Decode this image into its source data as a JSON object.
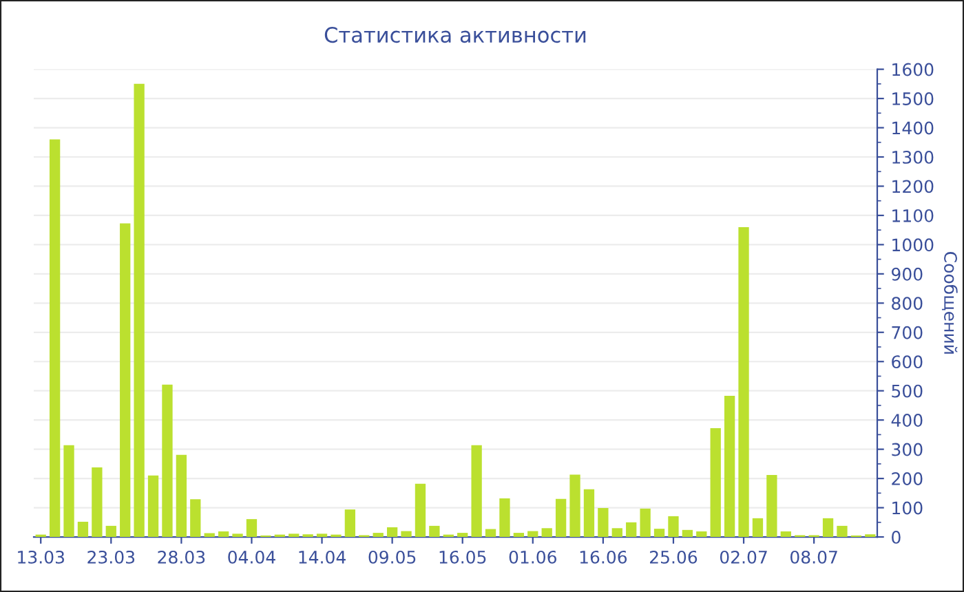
{
  "chart_data": {
    "type": "bar",
    "title": "Статистика активности",
    "ylabel": "Сообщений",
    "categories": [
      "13.03",
      null,
      null,
      null,
      null,
      "23.03",
      null,
      null,
      null,
      null,
      "28.03",
      null,
      null,
      null,
      null,
      "04.04",
      null,
      null,
      null,
      null,
      "14.04",
      null,
      null,
      null,
      null,
      "09.05",
      null,
      null,
      null,
      null,
      "16.05",
      null,
      null,
      null,
      null,
      "01.06",
      null,
      null,
      null,
      null,
      "16.06",
      null,
      null,
      null,
      null,
      "25.06",
      null,
      null,
      null,
      null,
      "02.07",
      null,
      null,
      null,
      null,
      "08.07",
      null,
      null,
      null,
      null
    ],
    "values": [
      8,
      1360,
      314,
      52,
      238,
      38,
      1073,
      1550,
      210,
      521,
      281,
      129,
      13,
      19,
      11,
      61,
      5,
      8,
      11,
      9,
      11,
      8,
      94,
      6,
      14,
      33,
      20,
      182,
      38,
      8,
      14,
      314,
      27,
      132,
      14,
      20,
      30,
      130,
      213,
      163,
      99,
      30,
      50,
      97,
      28,
      71,
      24,
      19,
      372,
      483,
      1060,
      64,
      212,
      19,
      6,
      6,
      64,
      38,
      5,
      9
    ],
    "color": "#bbe02f",
    "ylim": [
      0,
      1600
    ],
    "yticks": [
      0,
      100,
      200,
      300,
      400,
      500,
      600,
      700,
      800,
      900,
      1000,
      1100,
      1200,
      1300,
      1400,
      1500,
      1600
    ],
    "grid": "y"
  }
}
